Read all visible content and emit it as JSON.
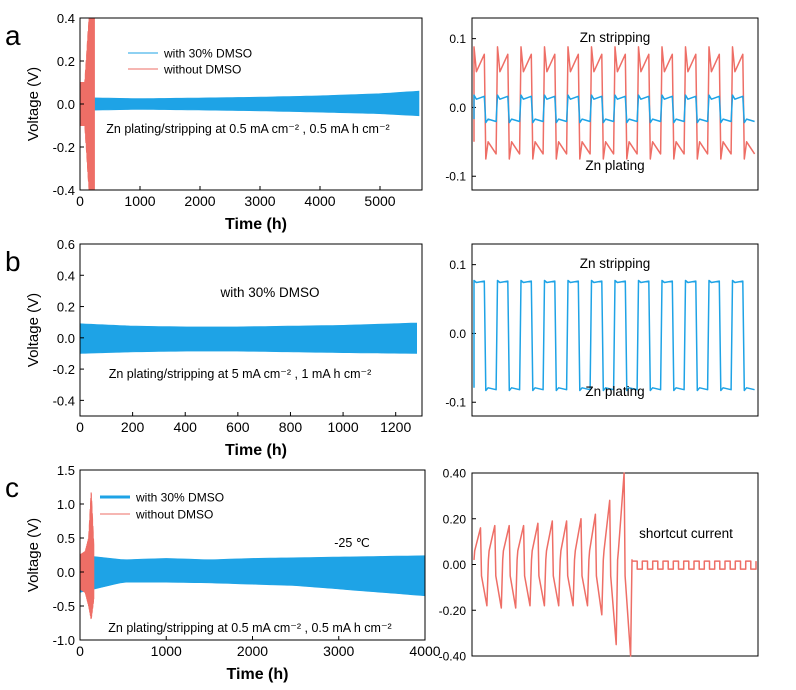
{
  "colors": {
    "dmso": "#1ea3e6",
    "no_dmso": "#ee6e66",
    "axis": "#000000"
  },
  "panels": [
    {
      "letter": "a",
      "chart_data": {
        "type": "line",
        "xlabel": "Time (h)",
        "ylabel": "Voltage (V)",
        "xlim": [
          0,
          5700
        ],
        "ylim": [
          -0.4,
          0.4
        ],
        "xticks": [
          0,
          1000,
          2000,
          3000,
          4000,
          5000
        ],
        "yticks": [
          -0.4,
          -0.2,
          0.0,
          0.2,
          0.4
        ],
        "ytick_labels": [
          "-0.4",
          "-0.2",
          "0.0",
          "0.2",
          "0.4"
        ],
        "annotation": "Zn plating/stripping at 0.5 mA cm⁻² , 0.5 mA h cm⁻²",
        "legend": {
          "placement": "top-center",
          "entries": [
            "with 30% DMSO",
            "without DMSO"
          ]
        },
        "series": [
          {
            "name": "with 30% DMSO",
            "x": [
              0,
              1000,
              2000,
              3000,
              4000,
              5000,
              5650
            ],
            "y_upper": [
              0.03,
              0.025,
              0.028,
              0.032,
              0.038,
              0.048,
              0.06
            ],
            "y_lower": [
              -0.03,
              -0.025,
              -0.028,
              -0.032,
              -0.038,
              -0.045,
              -0.055
            ]
          },
          {
            "name": "without DMSO",
            "x": [
              0,
              80,
              150,
              200,
              240
            ],
            "y_upper": [
              0.1,
              0.1,
              0.4,
              0.4,
              0.4
            ],
            "y_lower": [
              -0.1,
              -0.1,
              -0.4,
              -0.4,
              -0.4
            ]
          }
        ]
      },
      "inset": {
        "labels": {
          "top": "Zn stripping",
          "bottom": "Zn plating"
        },
        "ylim": [
          -0.12,
          0.13
        ],
        "yticks": [
          -0.1,
          0.0,
          0.1
        ],
        "ytick_labels": [
          "-0.1",
          "0.0",
          "0.1"
        ],
        "cycles": 12,
        "series": [
          {
            "name": "without DMSO",
            "color_key": "no_dmso",
            "peak_high": 0.088,
            "plateau_high": 0.052,
            "peak_low": -0.075,
            "plateau_low": -0.05
          },
          {
            "name": "with 30% DMSO",
            "color_key": "dmso",
            "peak_high": 0.018,
            "plateau_high": 0.012,
            "peak_low": -0.022,
            "plateau_low": -0.017
          }
        ]
      }
    },
    {
      "letter": "b",
      "chart_data": {
        "type": "line",
        "xlabel": "Time (h)",
        "ylabel": "Voltage (V)",
        "xlim": [
          0,
          1300
        ],
        "ylim": [
          -0.5,
          0.6
        ],
        "xticks": [
          0,
          200,
          400,
          600,
          800,
          1000,
          1200
        ],
        "yticks": [
          -0.4,
          -0.2,
          0.0,
          0.2,
          0.4,
          0.6
        ],
        "ytick_labels": [
          "-0.4",
          "-0.2",
          "0.0",
          "0.2",
          "0.4",
          "0.6"
        ],
        "annotation": "Zn plating/stripping at 5 mA cm⁻² , 1 mA h cm⁻²",
        "legend": {
          "placement": "top-center",
          "entries": [
            "with 30% DMSO"
          ]
        },
        "series": [
          {
            "name": "with 30% DMSO",
            "x": [
              0,
              200,
              400,
              600,
              800,
              1000,
              1280
            ],
            "y_upper": [
              0.09,
              0.075,
              0.07,
              0.07,
              0.075,
              0.08,
              0.095
            ],
            "y_lower": [
              -0.1,
              -0.09,
              -0.085,
              -0.085,
              -0.09,
              -0.095,
              -0.1
            ]
          }
        ]
      },
      "inset": {
        "labels": {
          "top": "Zn stripping",
          "bottom": "Zn plating"
        },
        "ylim": [
          -0.12,
          0.13
        ],
        "yticks": [
          -0.1,
          0.0,
          0.1
        ],
        "ytick_labels": [
          "-0.1",
          "0.0",
          "0.1"
        ],
        "cycles": 12,
        "series": [
          {
            "name": "with 30% DMSO",
            "color_key": "dmso",
            "peak_high": 0.077,
            "plateau_high": 0.074,
            "peak_low": -0.083,
            "plateau_low": -0.079
          }
        ]
      }
    },
    {
      "letter": "c",
      "chart_data": {
        "type": "line",
        "xlabel": "Time (h)",
        "ylabel": "Voltage (V)",
        "xlim": [
          0,
          4000
        ],
        "ylim": [
          -1.0,
          1.5
        ],
        "xticks": [
          0,
          1000,
          2000,
          3000,
          4000
        ],
        "yticks": [
          -1.0,
          -0.5,
          0.0,
          0.5,
          1.0,
          1.5
        ],
        "ytick_labels": [
          "-1.0",
          "-0.5",
          "0.0",
          "0.5",
          "1.0",
          "1.5"
        ],
        "annotation": "Zn plating/stripping at 0.5 mA cm⁻² , 0.5 mA h cm⁻²",
        "temperature": "-25 ℃",
        "legend": {
          "placement": "top-left",
          "entries": [
            "with 30% DMSO",
            "without DMSO"
          ]
        },
        "series": [
          {
            "name": "with 30% DMSO",
            "x": [
              0,
              500,
              1000,
              1500,
              2000,
              2500,
              3000,
              3500,
              4000
            ],
            "y_upper": [
              0.25,
              0.18,
              0.2,
              0.18,
              0.2,
              0.21,
              0.22,
              0.23,
              0.24
            ],
            "y_lower": [
              -0.3,
              -0.15,
              -0.15,
              -0.16,
              -0.18,
              -0.2,
              -0.25,
              -0.3,
              -0.35
            ]
          },
          {
            "name": "without DMSO",
            "x": [
              0,
              60,
              100,
              130,
              160
            ],
            "y_upper": [
              0.25,
              0.3,
              0.5,
              1.2,
              0.4
            ],
            "y_lower": [
              -0.25,
              -0.3,
              -0.5,
              -0.7,
              -0.4
            ]
          }
        ]
      },
      "inset": {
        "label": "shortcut current",
        "ylim": [
          -0.4,
          0.4
        ],
        "yticks": [
          -0.4,
          -0.2,
          0.0,
          0.2,
          0.4
        ],
        "ytick_labels": [
          "-0.40",
          "-0.20",
          "0.00",
          "0.20",
          "0.40"
        ],
        "series": [
          {
            "name": "without DMSO",
            "color_key": "no_dmso",
            "spike_cycles": 11,
            "peaks": [
              0.16,
              0.17,
              0.17,
              0.17,
              0.18,
              0.19,
              0.19,
              0.2,
              0.22,
              0.28,
              0.4
            ],
            "troughs": [
              -0.18,
              -0.19,
              -0.19,
              -0.18,
              -0.18,
              -0.18,
              -0.18,
              -0.18,
              -0.22,
              -0.35,
              -0.4
            ],
            "square_cycles": 12,
            "square_high": 0.015,
            "square_low": -0.02
          }
        ]
      }
    }
  ]
}
